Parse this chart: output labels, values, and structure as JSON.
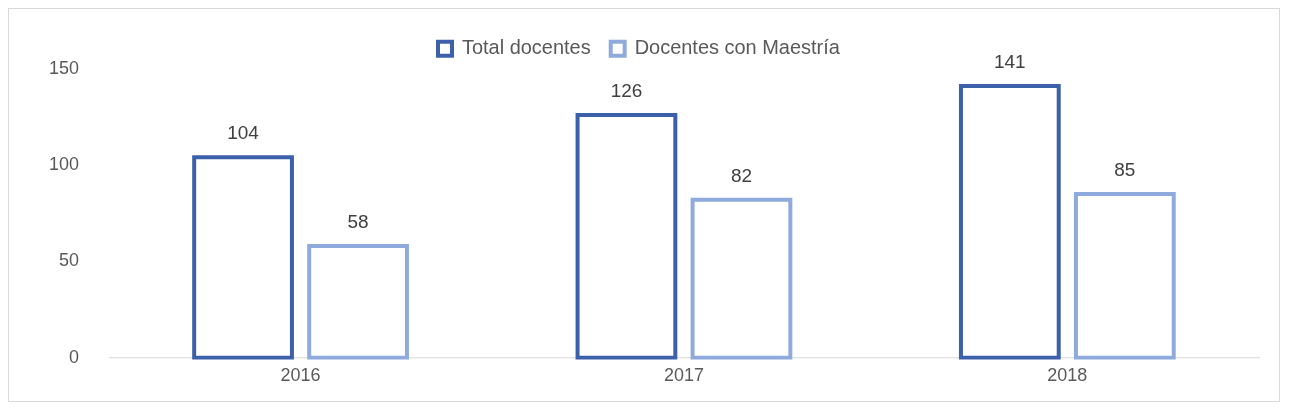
{
  "chart_data": {
    "type": "bar",
    "categories": [
      "2016",
      "2017",
      "2018"
    ],
    "series": [
      {
        "name": "Total docentes",
        "color": "#3c60aa",
        "values": [
          104,
          126,
          141
        ]
      },
      {
        "name": "Docentes con Maestría",
        "color": "#8faadc",
        "values": [
          58,
          82,
          85
        ]
      }
    ],
    "ylim": [
      0,
      150
    ],
    "yticks": [
      0,
      50,
      100,
      150
    ],
    "grid": false,
    "legend": "top",
    "data_labels": true
  }
}
